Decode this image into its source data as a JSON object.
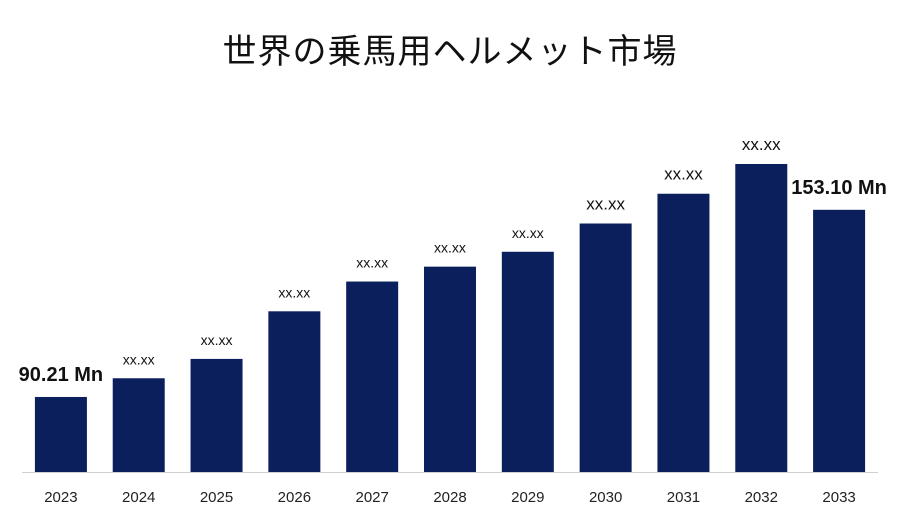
{
  "chart_data": {
    "type": "bar",
    "title": "世界の乗馬用ヘルメット市場",
    "categories": [
      "2023",
      "2024",
      "2025",
      "2026",
      "2027",
      "2028",
      "2029",
      "2030",
      "2031",
      "2032",
      "2033"
    ],
    "values": [
      90.21,
      96.5,
      103.0,
      119.0,
      129.0,
      134.0,
      139.0,
      148.5,
      158.5,
      168.5,
      153.1
    ],
    "data_labels": [
      "90.21 Mn",
      "xx.xx",
      "xx.xx",
      "xx.xx",
      "xx.xx",
      "xx.xx",
      "xx.xx",
      "xx.xx",
      "xx.xx",
      "xx.xx",
      "153.10 Mn"
    ],
    "bar_color": "#0b1f5c",
    "ylim": [
      65,
      190
    ],
    "grid": false,
    "legend": "none"
  }
}
